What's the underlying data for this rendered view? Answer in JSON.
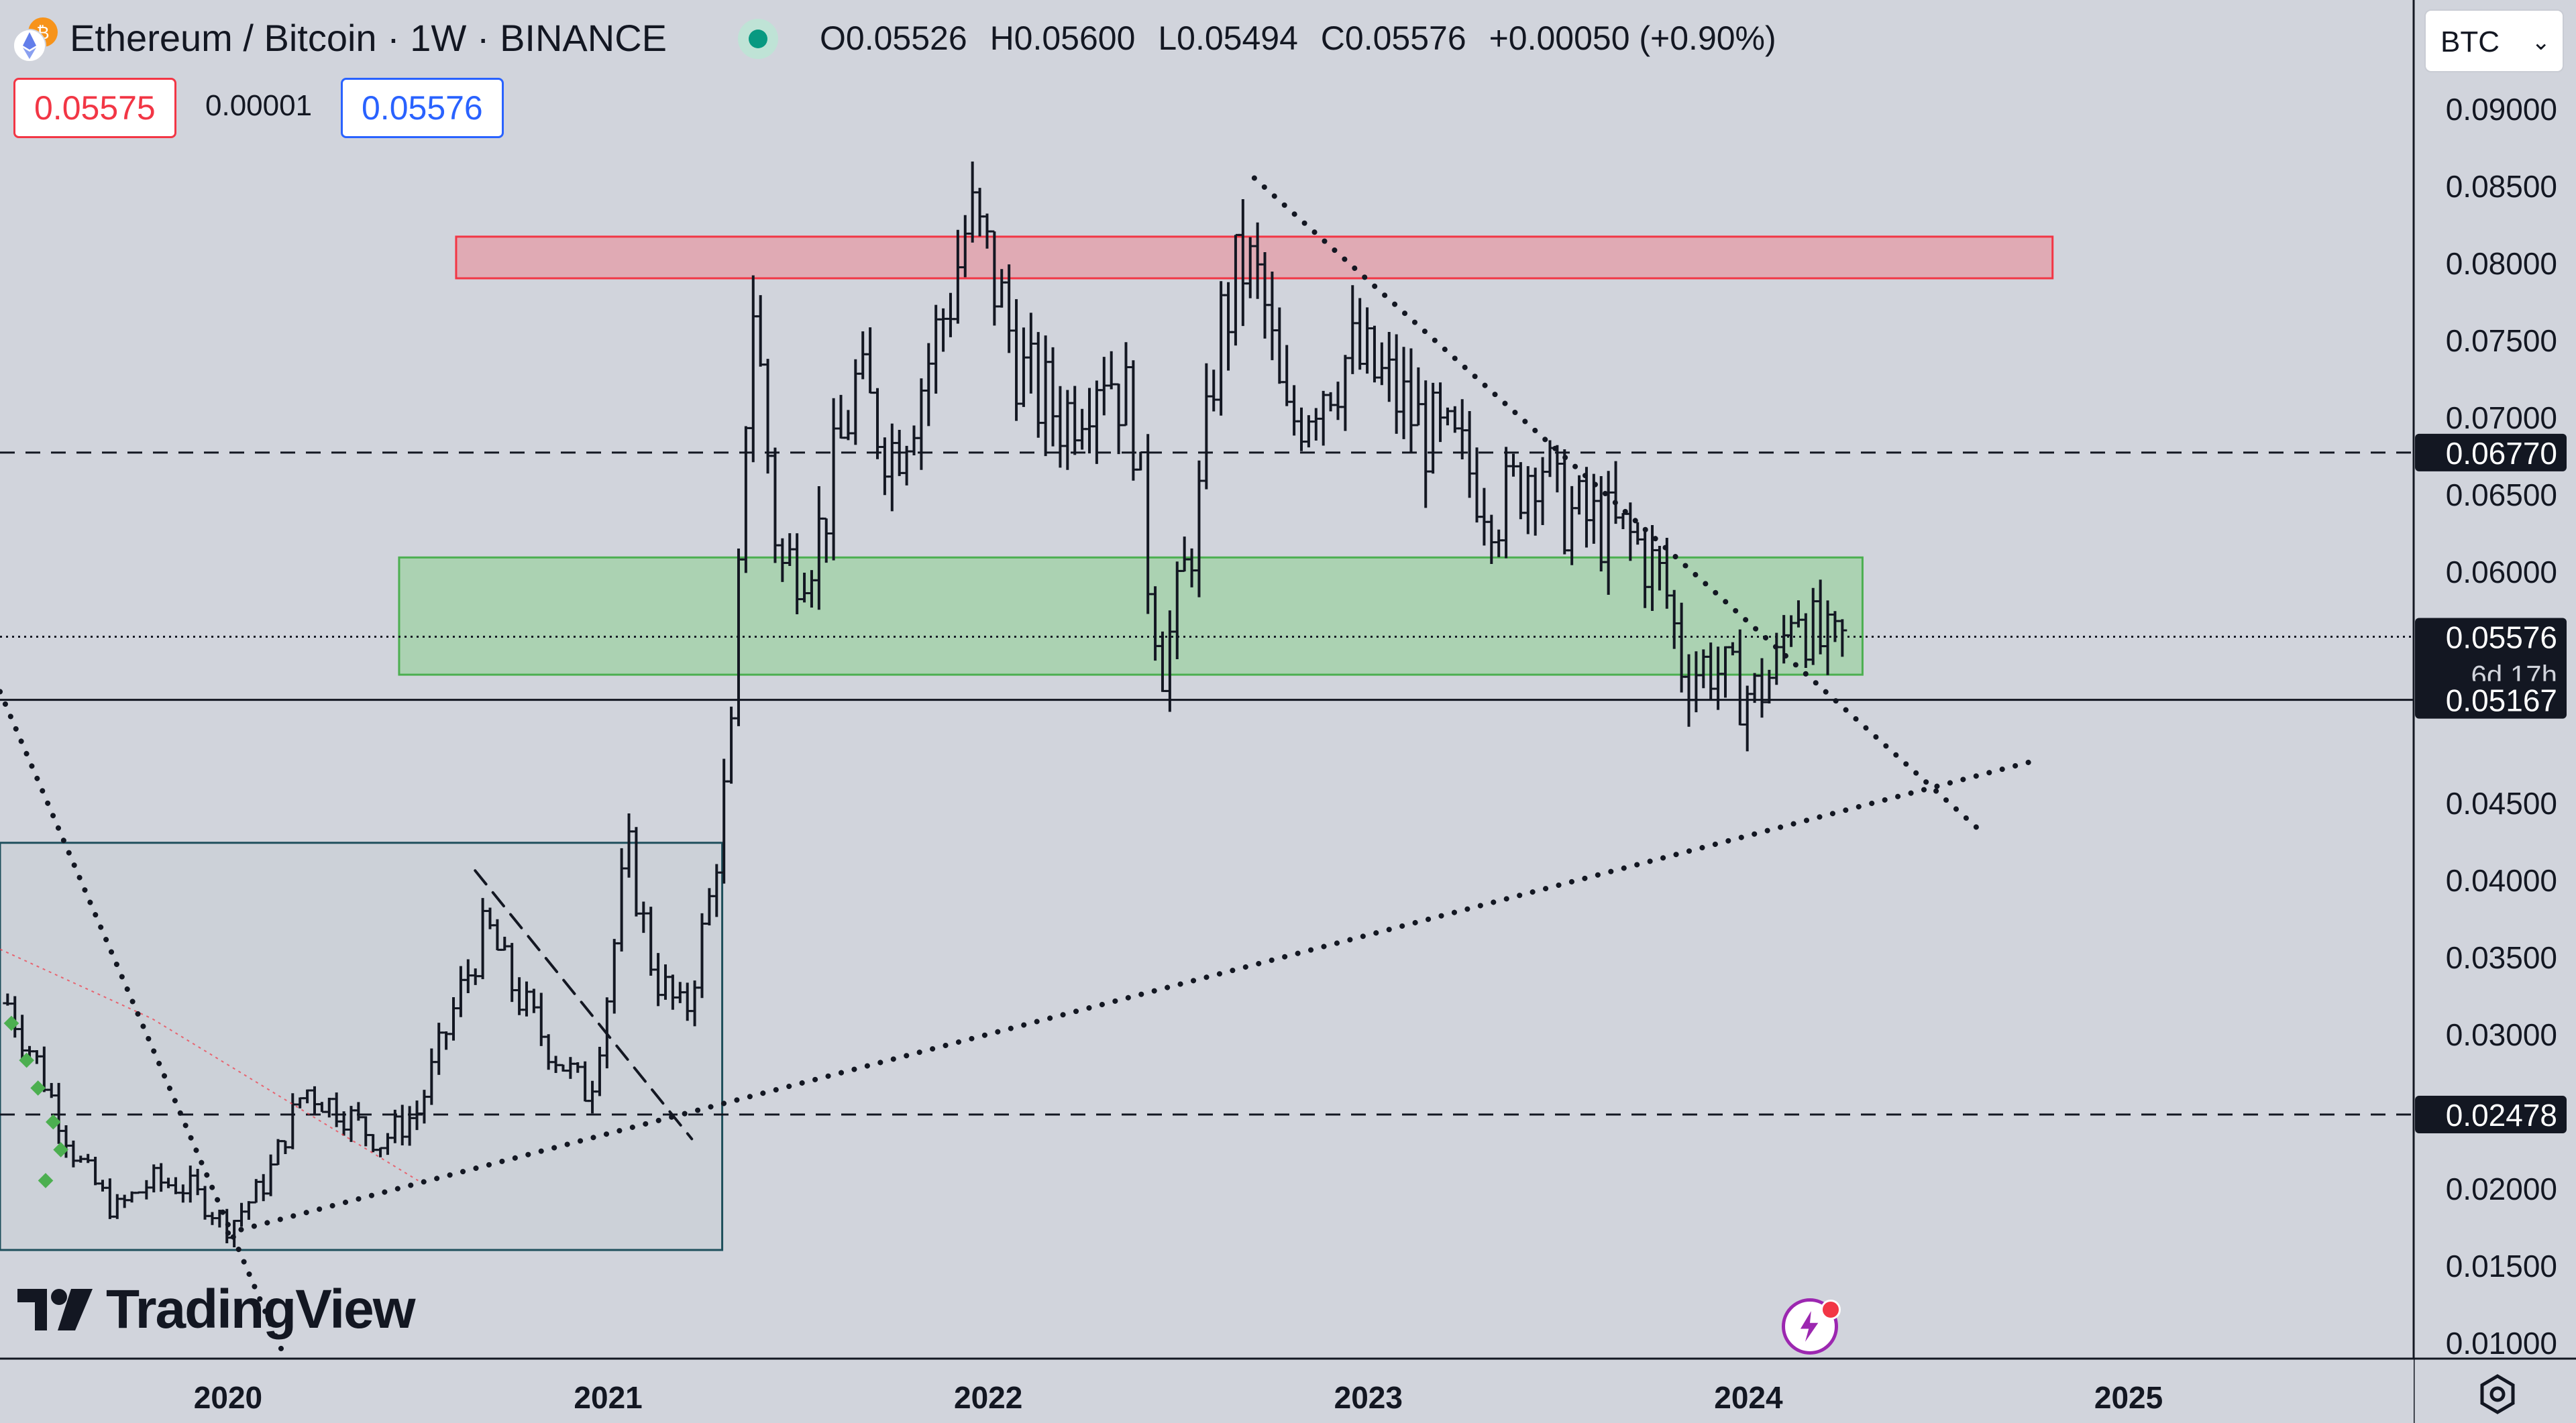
{
  "header": {
    "symbol_title": "Ethereum / Bitcoin · 1W · BINANCE",
    "ohlc": {
      "open_label": "O",
      "open": "0.05526",
      "high_label": "H",
      "high": "0.05600",
      "low_label": "L",
      "low": "0.05494",
      "close_label": "C",
      "close": "0.05576",
      "change": "+0.00050 (+0.90%)"
    },
    "sell_price": "0.05575",
    "spread": "0.00001",
    "buy_price": "0.05576",
    "currency": "BTC"
  },
  "branding": {
    "logo_text": "TradingView"
  },
  "colors": {
    "background": "#d1d4dc",
    "resistance_zone": "#e3a2ad",
    "support_zone": "#a6d1ad",
    "range_box": "#c9cdd6",
    "sell": "#f23645",
    "buy": "#2962ff",
    "accent": "#089981"
  },
  "chart_data": {
    "type": "bar",
    "title": "Ethereum / Bitcoin · 1W · BINANCE",
    "xlabel": "",
    "ylabel": "",
    "x_ticks": [
      "2020",
      "2021",
      "2022",
      "2023",
      "2024",
      "2025"
    ],
    "y_ticks": [
      "0.09000",
      "0.08500",
      "0.08000",
      "0.07500",
      "0.07000",
      "0.06500",
      "0.06000",
      "0.04500",
      "0.04000",
      "0.03500",
      "0.03000",
      "0.02000",
      "0.01500",
      "0.01000"
    ],
    "ylim": [
      0.009,
      0.095
    ],
    "xlim": [
      2019.4,
      2025.75
    ],
    "grid": false,
    "price_labels": [
      {
        "value": 0.0677,
        "text": "0.06770",
        "line": "dashed"
      },
      {
        "value": 0.05576,
        "text": "0.05576",
        "line": "dotted",
        "countdown": "6d 17h"
      },
      {
        "value": 0.05167,
        "text": "0.05167",
        "line": "solid"
      },
      {
        "value": 0.02478,
        "text": "0.02478",
        "line": "dashed"
      }
    ],
    "zones": [
      {
        "name": "resistance",
        "x0": 2020.6,
        "x1": 2024.8,
        "y0": 0.079,
        "y1": 0.0817
      },
      {
        "name": "support",
        "x0": 2020.45,
        "x1": 2024.3,
        "y0": 0.0533,
        "y1": 0.0609
      },
      {
        "name": "range",
        "x0": 2019.4,
        "x1": 2021.3,
        "y0": 0.016,
        "y1": 0.0424
      }
    ],
    "trendlines": [
      {
        "style": "dotted",
        "points": [
          [
            2019.4,
            0.0522
          ],
          [
            2020.15,
            0.009
          ]
        ]
      },
      {
        "style": "dotted",
        "points": [
          [
            2020.0,
            0.0171
          ],
          [
            2024.75,
            0.0477
          ]
        ]
      },
      {
        "style": "dotted",
        "points": [
          [
            2022.7,
            0.0855
          ],
          [
            2024.6,
            0.0434
          ]
        ]
      },
      {
        "style": "dashed",
        "points": [
          [
            2020.65,
            0.0406
          ],
          [
            2021.22,
            0.0232
          ]
        ]
      }
    ],
    "series": [
      {
        "weekly_close_anchors": [
          [
            2019.42,
            0.032
          ],
          [
            2019.5,
            0.028
          ],
          [
            2019.6,
            0.022
          ],
          [
            2019.7,
            0.0185
          ],
          [
            2019.8,
            0.0205
          ],
          [
            2019.9,
            0.02
          ],
          [
            2020.0,
            0.0175
          ],
          [
            2020.1,
            0.0205
          ],
          [
            2020.2,
            0.0265
          ],
          [
            2020.3,
            0.025
          ],
          [
            2020.4,
            0.023
          ],
          [
            2020.5,
            0.025
          ],
          [
            2020.6,
            0.032
          ],
          [
            2020.68,
            0.037
          ],
          [
            2020.75,
            0.033
          ],
          [
            2020.85,
            0.029
          ],
          [
            2020.95,
            0.026
          ],
          [
            2021.0,
            0.033
          ],
          [
            2021.05,
            0.042
          ],
          [
            2021.12,
            0.034
          ],
          [
            2021.2,
            0.031
          ],
          [
            2021.27,
            0.039
          ],
          [
            2021.33,
            0.05
          ],
          [
            2021.36,
            0.07
          ],
          [
            2021.38,
            0.078
          ],
          [
            2021.45,
            0.06
          ],
          [
            2021.55,
            0.062
          ],
          [
            2021.65,
            0.072
          ],
          [
            2021.75,
            0.068
          ],
          [
            2021.82,
            0.072
          ],
          [
            2021.9,
            0.078
          ],
          [
            2021.95,
            0.083
          ],
          [
            2022.0,
            0.08
          ],
          [
            2022.1,
            0.072
          ],
          [
            2022.2,
            0.07
          ],
          [
            2022.3,
            0.074
          ],
          [
            2022.38,
            0.07
          ],
          [
            2022.42,
            0.06
          ],
          [
            2022.46,
            0.054
          ],
          [
            2022.5,
            0.058
          ],
          [
            2022.56,
            0.065
          ],
          [
            2022.6,
            0.075
          ],
          [
            2022.67,
            0.08
          ],
          [
            2022.72,
            0.078
          ],
          [
            2022.78,
            0.069
          ],
          [
            2022.86,
            0.072
          ],
          [
            2022.95,
            0.074
          ],
          [
            2023.05,
            0.072
          ],
          [
            2023.15,
            0.069
          ],
          [
            2023.25,
            0.067
          ],
          [
            2023.35,
            0.064
          ],
          [
            2023.45,
            0.068
          ],
          [
            2023.5,
            0.064
          ],
          [
            2023.6,
            0.063
          ],
          [
            2023.7,
            0.062
          ],
          [
            2023.78,
            0.059
          ],
          [
            2023.83,
            0.0535
          ],
          [
            2023.9,
            0.054
          ],
          [
            2023.96,
            0.0525
          ],
          [
            2024.02,
            0.052
          ],
          [
            2024.08,
            0.054
          ],
          [
            2024.12,
            0.059
          ],
          [
            2024.16,
            0.056
          ],
          [
            2024.22,
            0.0545
          ],
          [
            2024.26,
            0.0557
          ]
        ]
      }
    ]
  }
}
